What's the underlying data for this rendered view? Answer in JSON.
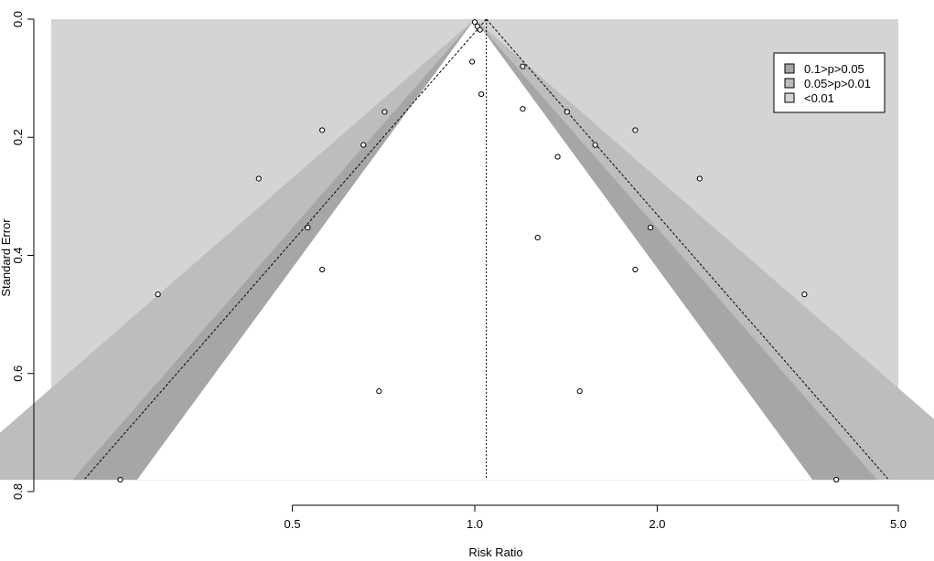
{
  "chart_data": {
    "type": "scatter",
    "subtype": "contour-enhanced funnel plot",
    "xlabel": "Risk Ratio",
    "ylabel": "Standard Error",
    "x_scale": "log",
    "x_ticks": [
      0.5,
      1.0,
      2.0,
      5.0
    ],
    "x_tick_labels": [
      "0.5",
      "1.0",
      "2.0",
      "5.0"
    ],
    "xlim": [
      0.2,
      5.0
    ],
    "y_ticks": [
      0.0,
      0.2,
      0.4,
      0.6,
      0.8
    ],
    "y_tick_labels": [
      "0.0",
      "0.2",
      "0.4",
      "0.6",
      "0.8"
    ],
    "ylim": [
      0.0,
      0.78
    ],
    "y_reversed": true,
    "pooled_estimate": 1.045,
    "pseudo_ci_reference": 1.0,
    "legend": {
      "position": "top-right",
      "entries": [
        {
          "label": "0.1>p>0.05",
          "color": "#a6a6a6"
        },
        {
          "label": "0.05>p>0.01",
          "color": "#bdbdbd"
        },
        {
          "label": "<0.01",
          "color": "#d4d4d4"
        }
      ]
    },
    "colors": {
      "region_p010": "#a6a6a6",
      "region_p005": "#bdbdbd",
      "region_p001": "#d4d4d4",
      "inner": "#ffffff"
    },
    "points": [
      {
        "rr": 1.0,
        "se": 0.005
      },
      {
        "rr": 1.01,
        "se": 0.012
      },
      {
        "rr": 1.02,
        "se": 0.018
      },
      {
        "rr": 0.99,
        "se": 0.072
      },
      {
        "rr": 1.025,
        "se": 0.127
      },
      {
        "rr": 1.2,
        "se": 0.08
      },
      {
        "rr": 1.2,
        "se": 0.152
      },
      {
        "rr": 0.71,
        "se": 0.157
      },
      {
        "rr": 0.56,
        "se": 0.188
      },
      {
        "rr": 0.655,
        "se": 0.213
      },
      {
        "rr": 1.42,
        "se": 0.157
      },
      {
        "rr": 1.58,
        "se": 0.213
      },
      {
        "rr": 1.37,
        "se": 0.233
      },
      {
        "rr": 1.84,
        "se": 0.188
      },
      {
        "rr": 0.44,
        "se": 0.27
      },
      {
        "rr": 2.35,
        "se": 0.27
      },
      {
        "rr": 0.53,
        "se": 0.353
      },
      {
        "rr": 1.95,
        "se": 0.353
      },
      {
        "rr": 1.27,
        "se": 0.37
      },
      {
        "rr": 0.56,
        "se": 0.424
      },
      {
        "rr": 1.84,
        "se": 0.424
      },
      {
        "rr": 0.3,
        "se": 0.466
      },
      {
        "rr": 3.5,
        "se": 0.466
      },
      {
        "rr": 0.695,
        "se": 0.63
      },
      {
        "rr": 1.49,
        "se": 0.63
      },
      {
        "rr": 0.26,
        "se": 0.78
      },
      {
        "rr": 3.95,
        "se": 0.78
      }
    ]
  }
}
